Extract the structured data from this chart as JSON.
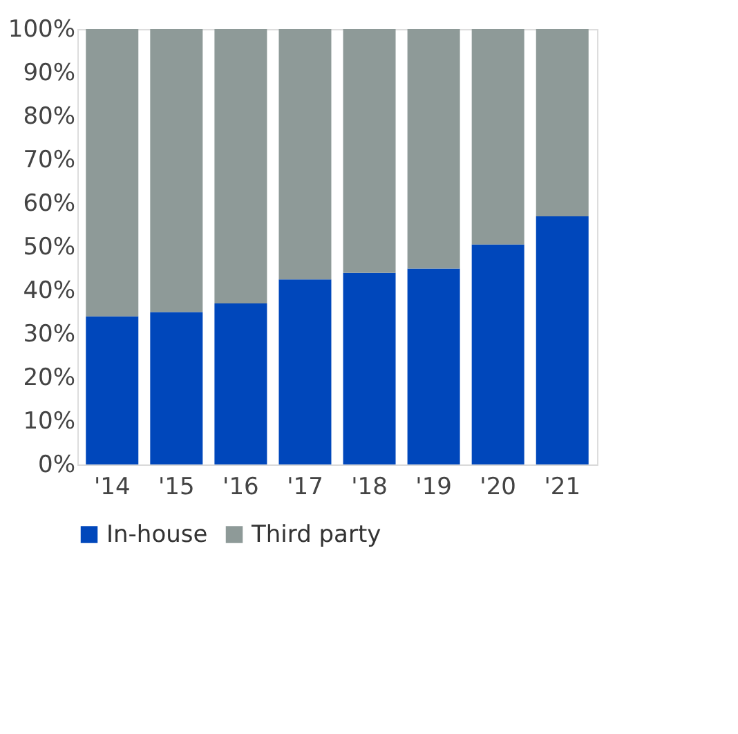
{
  "chart_data": {
    "type": "bar",
    "stacked": true,
    "categories": [
      "'14",
      "'15",
      "'16",
      "'17",
      "'18",
      "'19",
      "'20",
      "'21"
    ],
    "series": [
      {
        "name": "In-house",
        "color": "#0047bb",
        "values": [
          34,
          35,
          37,
          42.5,
          44,
          45,
          50.5,
          57
        ]
      },
      {
        "name": "Third party",
        "color": "#8e9a98",
        "values": [
          66,
          65,
          63,
          57.5,
          56,
          55,
          49.5,
          43
        ]
      }
    ],
    "ylim": [
      0,
      100
    ],
    "yticks": [
      {
        "value": 0,
        "label": "0%"
      },
      {
        "value": 10,
        "label": "10%"
      },
      {
        "value": 20,
        "label": "20%"
      },
      {
        "value": 30,
        "label": "30%"
      },
      {
        "value": 40,
        "label": "40%"
      },
      {
        "value": 50,
        "label": "50%"
      },
      {
        "value": 60,
        "label": "60%"
      },
      {
        "value": 70,
        "label": "70%"
      },
      {
        "value": 80,
        "label": "80%"
      },
      {
        "value": 90,
        "label": "90%"
      },
      {
        "value": 100,
        "label": "100%"
      }
    ],
    "grid": false,
    "legend": "bottom"
  }
}
